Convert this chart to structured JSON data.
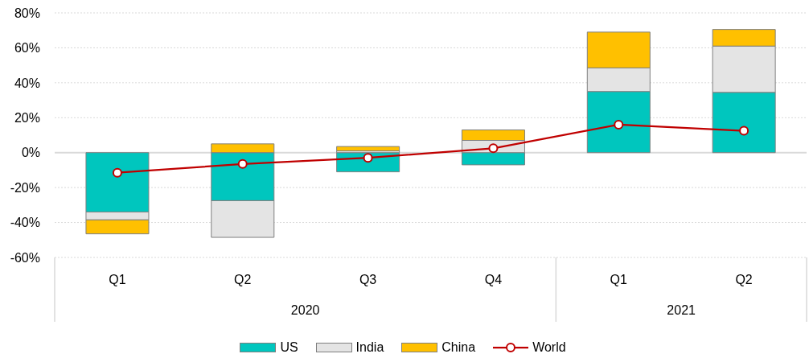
{
  "chart_data": {
    "type": "bar",
    "stacked": true,
    "categories": [
      "Q1",
      "Q2",
      "Q3",
      "Q4",
      "Q1",
      "Q2"
    ],
    "series": [
      {
        "name": "US",
        "color": "#00c6be",
        "values": [
          -34,
          -27.5,
          -11,
          -7,
          35,
          34.5
        ]
      },
      {
        "name": "India",
        "color": "#e4e4e4",
        "values": [
          -4.5,
          -21,
          1,
          7,
          13.5,
          26.5
        ]
      },
      {
        "name": "China",
        "color": "#ffc000",
        "values": [
          -8,
          5,
          2.5,
          6,
          20.5,
          9.5
        ]
      },
      {
        "name": "World",
        "type": "line",
        "color": "#c00000",
        "values": [
          -11.5,
          -6.5,
          -3,
          2.5,
          16,
          12.5
        ]
      }
    ],
    "ylim": [
      -60,
      80
    ],
    "yticks": [
      {
        "value": -60,
        "label": "-60%"
      },
      {
        "value": -40,
        "label": "-40%"
      },
      {
        "value": -20,
        "label": "-20%"
      },
      {
        "value": 0,
        "label": "0%"
      },
      {
        "value": 20,
        "label": "20%"
      },
      {
        "value": 40,
        "label": "40%"
      },
      {
        "value": 60,
        "label": "60%"
      },
      {
        "value": 80,
        "label": "80%"
      }
    ],
    "grid": "y",
    "legend": "bottom",
    "marker": "circle",
    "line_style": "solid",
    "annotations": [
      "2020",
      "2021"
    ]
  }
}
